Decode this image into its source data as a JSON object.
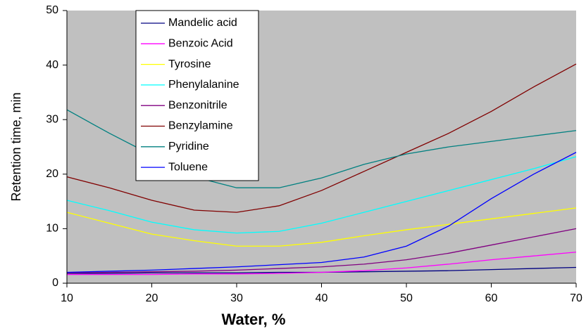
{
  "chart_data": {
    "type": "line",
    "x_label": "Water, %",
    "y_label": "Retention time, min",
    "x": [
      10,
      15,
      20,
      25,
      30,
      35,
      40,
      45,
      50,
      55,
      60,
      65,
      70
    ],
    "series": [
      {
        "name": "Mandelic acid",
        "color": "#000080",
        "values": [
          1.8,
          1.8,
          1.9,
          1.9,
          1.9,
          2.0,
          2.0,
          2.1,
          2.2,
          2.3,
          2.5,
          2.7,
          2.9
        ]
      },
      {
        "name": "Benzoic Acid",
        "color": "#ff00ff",
        "values": [
          1.6,
          1.6,
          1.6,
          1.7,
          1.7,
          1.8,
          2.0,
          2.3,
          2.8,
          3.5,
          4.3,
          5.0,
          5.7
        ]
      },
      {
        "name": "Tyrosine",
        "color": "#ffff00",
        "values": [
          13,
          11,
          9,
          7.8,
          6.8,
          6.8,
          7.5,
          8.7,
          9.8,
          10.8,
          11.8,
          12.8,
          13.8
        ]
      },
      {
        "name": "Phenylalanine",
        "color": "#00ffff",
        "values": [
          15.2,
          13.3,
          11.2,
          9.8,
          9.2,
          9.5,
          11,
          13,
          15,
          17,
          19,
          21,
          23.2
        ]
      },
      {
        "name": "Benzonitrile",
        "color": "#800080",
        "values": [
          1.9,
          2.0,
          2.1,
          2.2,
          2.4,
          2.7,
          3.0,
          3.5,
          4.3,
          5.5,
          7.0,
          8.5,
          10
        ]
      },
      {
        "name": "Benzylamine",
        "color": "#800000",
        "values": [
          19.5,
          17.5,
          15.2,
          13.4,
          13,
          14.2,
          17,
          20.5,
          24,
          27.5,
          31.5,
          36,
          40.2
        ]
      },
      {
        "name": "Pyridine",
        "color": "#008080",
        "values": [
          31.8,
          27.5,
          23.5,
          19.5,
          17.5,
          17.5,
          19.3,
          21.8,
          23.7,
          25,
          26,
          27,
          28
        ]
      },
      {
        "name": "Toluene",
        "color": "#0000ff",
        "values": [
          2.0,
          2.2,
          2.4,
          2.7,
          3.0,
          3.4,
          3.8,
          4.8,
          6.8,
          10.5,
          15.5,
          20,
          24
        ]
      }
    ],
    "xlim": [
      10,
      70
    ],
    "xticks": [
      10,
      20,
      30,
      40,
      50,
      60,
      70
    ],
    "ylim": [
      0,
      50
    ],
    "yticks": [
      0,
      10,
      20,
      30,
      40,
      50
    ],
    "plot_background": "#c0c0c0"
  }
}
